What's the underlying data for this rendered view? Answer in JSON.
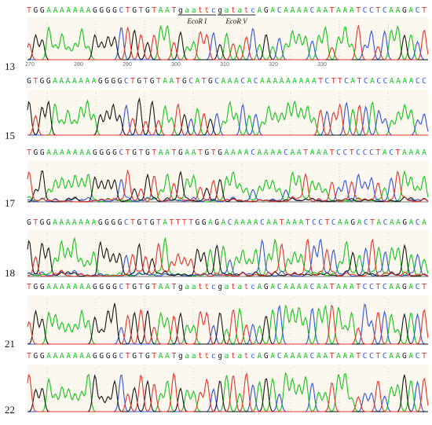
{
  "colors": {
    "A": "#12c41a",
    "C": "#2f54d8",
    "G": "#161616",
    "T": "#e3342a",
    "panel_bg": "#fdf8ef",
    "seq_bg": "#ffffff"
  },
  "panels": [
    {
      "label": "13",
      "sequence": [
        "T",
        "G",
        "G",
        "A",
        "A",
        "A",
        "A",
        "A",
        "A",
        "A",
        "G",
        "G",
        "G",
        "G",
        "C",
        "T",
        "G",
        "T",
        "G",
        "T",
        "A",
        "A",
        "T",
        "g",
        "a",
        "a",
        "t",
        "t",
        "c",
        "g",
        "a",
        "t",
        "a",
        "t",
        "c",
        "A",
        "G",
        "A",
        "C",
        "A",
        "A",
        "A",
        "A",
        "C",
        "A",
        "A",
        "T",
        "A",
        "A",
        "A",
        "T",
        "C",
        "C",
        "T",
        "C",
        "A",
        "A",
        "G",
        "A",
        "C",
        "T"
      ],
      "ticks": [
        "270",
        "280",
        "290",
        "300",
        "310",
        "320",
        "330"
      ],
      "annotations": [
        {
          "text": "EcoR I",
          "first_base": 23,
          "last_base": 28
        },
        {
          "text": "EcoR V",
          "first_base": 29,
          "last_base": 34
        }
      ]
    },
    {
      "label": "15",
      "sequence": [
        "G",
        "T",
        "G",
        "G",
        "A",
        "A",
        "A",
        "A",
        "A",
        "A",
        "A",
        "G",
        "G",
        "G",
        "G",
        "C",
        "T",
        "G",
        "T",
        "G",
        "T",
        "A",
        "A",
        "T",
        "G",
        "C",
        "A",
        "T",
        "G",
        "C",
        "A",
        "A",
        "A",
        "C",
        "A",
        "C",
        "A",
        "A",
        "A",
        "A",
        "A",
        "A",
        "A",
        "A",
        "A",
        "T",
        "C",
        "T",
        "T",
        "C",
        "A",
        "T",
        "C",
        "A",
        "C",
        "C",
        "A",
        "A",
        "A",
        "A",
        "C",
        "C"
      ],
      "ticks": [],
      "annotations": []
    },
    {
      "label": "17",
      "sequence": [
        "T",
        "G",
        "G",
        "A",
        "A",
        "A",
        "A",
        "A",
        "A",
        "A",
        "G",
        "G",
        "G",
        "G",
        "C",
        "T",
        "G",
        "T",
        "G",
        "T",
        "A",
        "A",
        "T",
        "G",
        "A",
        "A",
        "T",
        "G",
        "T",
        "G",
        "A",
        "A",
        "A",
        "A",
        "C",
        "A",
        "A",
        "A",
        "A",
        "C",
        "A",
        "A",
        "T",
        "A",
        "A",
        "A",
        "T",
        "C",
        "C",
        "T",
        "C",
        "C",
        "C",
        "T",
        "A",
        "C",
        "T",
        "A",
        "A",
        "A",
        "A"
      ],
      "ticks": [],
      "annotations": []
    },
    {
      "label": "18",
      "sequence": [
        "G",
        "T",
        "G",
        "G",
        "A",
        "A",
        "A",
        "A",
        "A",
        "A",
        "A",
        "G",
        "G",
        "G",
        "G",
        "C",
        "T",
        "G",
        "T",
        "G",
        "T",
        "A",
        "T",
        "T",
        "T",
        "T",
        "G",
        "G",
        "A",
        "G",
        "A",
        "C",
        "A",
        "A",
        "A",
        "A",
        "C",
        "A",
        "A",
        "T",
        "A",
        "A",
        "A",
        "T",
        "C",
        "C",
        "T",
        "C",
        "A",
        "A",
        "G",
        "A",
        "C",
        "T",
        "A",
        "C",
        "A",
        "A",
        "G",
        "A",
        "C",
        "A"
      ],
      "ticks": [],
      "annotations": []
    },
    {
      "label": "21",
      "sequence": [
        "T",
        "G",
        "G",
        "A",
        "A",
        "A",
        "A",
        "A",
        "A",
        "A",
        "G",
        "G",
        "G",
        "G",
        "C",
        "T",
        "G",
        "T",
        "G",
        "T",
        "A",
        "A",
        "T",
        "g",
        "a",
        "a",
        "t",
        "t",
        "c",
        "g",
        "a",
        "t",
        "a",
        "t",
        "c",
        "A",
        "G",
        "A",
        "C",
        "A",
        "A",
        "A",
        "A",
        "C",
        "A",
        "A",
        "T",
        "A",
        "A",
        "A",
        "T",
        "C",
        "C",
        "T",
        "C",
        "A",
        "A",
        "G",
        "A",
        "C",
        "T"
      ],
      "ticks": [],
      "annotations": []
    },
    {
      "label": "22",
      "sequence": [
        "T",
        "G",
        "G",
        "A",
        "A",
        "A",
        "A",
        "A",
        "A",
        "A",
        "G",
        "G",
        "G",
        "G",
        "C",
        "T",
        "G",
        "T",
        "G",
        "T",
        "A",
        "A",
        "T",
        "g",
        "a",
        "a",
        "t",
        "t",
        "c",
        "g",
        "a",
        "t",
        "a",
        "t",
        "c",
        "A",
        "G",
        "A",
        "C",
        "A",
        "A",
        "A",
        "A",
        "C",
        "A",
        "A",
        "T",
        "A",
        "A",
        "A",
        "T",
        "C",
        "C",
        "T",
        "C",
        "A",
        "A",
        "G",
        "A",
        "C",
        "T"
      ],
      "ticks": [],
      "annotations": []
    }
  ]
}
